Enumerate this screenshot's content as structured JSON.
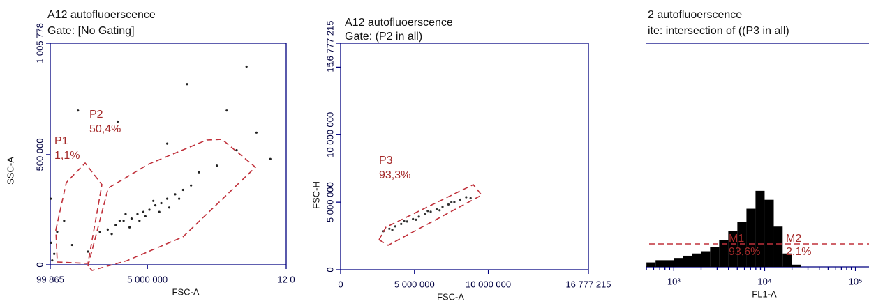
{
  "chart_data": [
    {
      "type": "scatter",
      "title": "A12 autofluoerscence",
      "subtitle": "Gate: [No Gating]",
      "x_label": "FSC-A",
      "y_label": "SSC-A",
      "color": "#222222",
      "xlim": [
        99865,
        12000000
      ],
      "ylim": [
        0,
        1005778
      ],
      "xticks": [
        {
          "value": 99865,
          "label": "99 865"
        },
        {
          "value": 5000000,
          "label": "5 000 000"
        },
        {
          "value": 12000000,
          "label": "12 0"
        }
      ],
      "yticks": [
        0,
        {
          "value": 500000,
          "label": "500 000"
        },
        {
          "value": 1005778,
          "label": "1 005 778"
        }
      ],
      "x": [
        2600000,
        3000000,
        3400000,
        3800000,
        4200000,
        4500000,
        4800000,
        5100000,
        5400000,
        5700000,
        6000000,
        6400000,
        6800000,
        7200000,
        3200000,
        3900000,
        4600000,
        5300000,
        6100000,
        4100000,
        4900000,
        5600000,
        3600000,
        6600000,
        7600000,
        8500000,
        9500000,
        10500000,
        11200000,
        9000000,
        300000,
        150000,
        200000,
        450000,
        120000,
        800000,
        1200000,
        2000000,
        7000000,
        10000000,
        1500000,
        3500000,
        6000000
      ],
      "values": [
        150000,
        160000,
        180000,
        200000,
        210000,
        230000,
        240000,
        250000,
        270000,
        280000,
        300000,
        320000,
        340000,
        360000,
        140000,
        230000,
        200000,
        290000,
        260000,
        170000,
        220000,
        240000,
        200000,
        300000,
        420000,
        450000,
        520000,
        600000,
        480000,
        700000,
        50000,
        100000,
        20000,
        150000,
        300000,
        200000,
        90000,
        60000,
        820000,
        900000,
        700000,
        650000,
        550000
      ],
      "annotations": [
        "P1",
        "1,1%",
        "P2",
        "50,4%"
      ]
    },
    {
      "type": "scatter",
      "title": "A12 autofluoerscence",
      "subtitle": "Gate: (P2 in all)",
      "x_label": "FSC-A",
      "y_label": "FSC-H",
      "color": "#333333",
      "xlim": [
        0,
        16777215
      ],
      "ylim": [
        0,
        16777215
      ],
      "xticks": [
        0,
        {
          "value": 5000000,
          "label": "5 000 000"
        },
        {
          "value": 10000000,
          "label": "10 000 000"
        },
        {
          "value": 16777215,
          "label": "16 777 215"
        }
      ],
      "yticks": [
        0,
        {
          "value": 5000000,
          "label": "5 000 000"
        },
        {
          "value": 10000000,
          "label": "10 000 000"
        },
        {
          "value": 15000000,
          "label": "15"
        },
        {
          "value": 16777215,
          "label": "16 777 215"
        }
      ],
      "x": [
        2900000,
        3300000,
        3700000,
        4100000,
        4500000,
        4900000,
        5300000,
        5700000,
        6100000,
        6500000,
        6900000,
        7300000,
        7700000,
        8100000,
        8500000,
        3500000,
        4300000,
        5100000,
        5900000,
        6700000,
        7500000,
        8800000
      ],
      "values": [
        2850000,
        3030000,
        3210000,
        3390000,
        3570000,
        3750000,
        3930000,
        4110000,
        4290000,
        4470000,
        4650000,
        4830000,
        5010000,
        5190000,
        5370000,
        2950000,
        3600000,
        3700000,
        4350000,
        4400000,
        5000000,
        5300000
      ],
      "annotations": [
        "P3",
        "93,3%"
      ]
    },
    {
      "type": "histogram",
      "title": "2 autofluoerscence",
      "subtitle": "ite: intersection of ((P3 in all)",
      "x_label": "FL1-A",
      "color": "#000000",
      "log_x": true,
      "xlim": [
        490,
        141000
      ],
      "ylim": [
        0,
        100
      ],
      "xticks": [
        {
          "value": 1000,
          "label": "10³"
        },
        {
          "value": 10000,
          "label": "10⁴"
        },
        {
          "value": 100000,
          "label": "10⁵"
        }
      ],
      "bins": [
        500,
        630,
        790,
        1000,
        1260,
        1580,
        2000,
        2510,
        3160,
        3980,
        5010,
        6310,
        7940,
        10000,
        12600,
        15800,
        20000,
        25100
      ],
      "values": [
        2,
        3,
        3,
        4,
        5,
        6,
        7,
        9,
        12,
        16,
        20,
        26,
        34,
        30,
        18,
        6,
        1
      ],
      "annotations": [
        "M1",
        "93,6%",
        "M2",
        "2,1%"
      ]
    }
  ]
}
